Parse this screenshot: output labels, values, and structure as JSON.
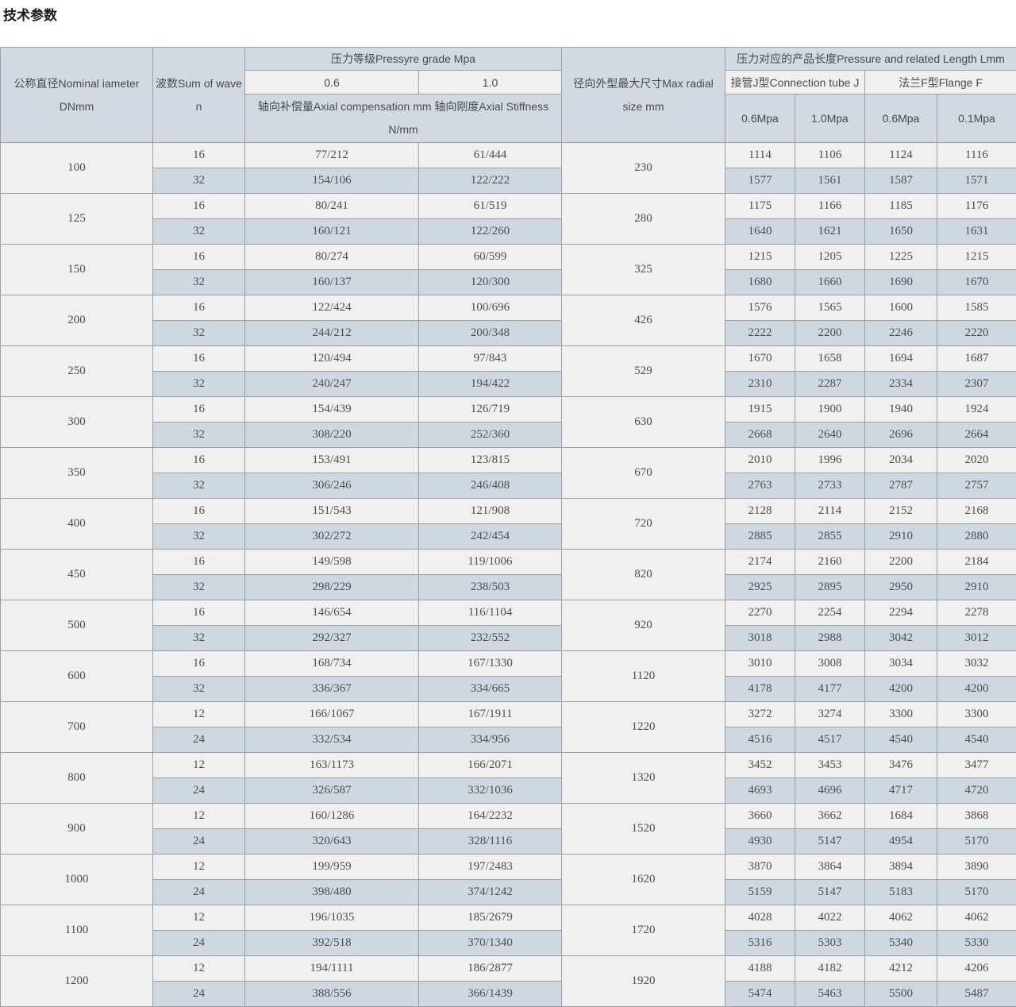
{
  "page_title": "技术参数",
  "colors": {
    "header_bg": "#d2d9e0",
    "row_light_bg": "#f0f0f0",
    "row_alt_bg": "#cfd8e1",
    "border": "#9b9fa3",
    "text": "#4a4a4a"
  },
  "table": {
    "headers": {
      "diameter_line1": "公称直径Nominal iameter",
      "diameter_line2": "DNmm",
      "wave_line1": "波数Sum of wave",
      "wave_line2": "n",
      "pressure_grade": "压力等级Pressyre grade Mpa",
      "grade_06": "0.6",
      "grade_10": "1.0",
      "axial_line1": "轴向补偿量Axial compensation mm 轴向刚度Axial Stiffness",
      "axial_line2": "N/mm",
      "radial_line1": "径向外型最大尺寸Max radial",
      "radial_line2": "size mm",
      "length_group": "压力对应的产品长度Pressure and related Length Lmm",
      "tube_j": "接管J型Connection tube J",
      "flange_f": "法兰F型Flange F",
      "tube_06": "0.6Mpa",
      "tube_10": "1.0Mpa",
      "flange_06": "0.6Mpa",
      "flange_01": "0.1Mpa"
    },
    "rows": [
      {
        "dn": "100",
        "radial": "230",
        "waves": [
          {
            "n": "16",
            "axial_06": "77/212",
            "axial_10": "61/444",
            "tube_06": "1114",
            "tube_10": "1106",
            "flange_06": "1124",
            "flange_01": "1116"
          },
          {
            "n": "32",
            "axial_06": "154/106",
            "axial_10": "122/222",
            "tube_06": "1577",
            "tube_10": "1561",
            "flange_06": "1587",
            "flange_01": "1571"
          }
        ]
      },
      {
        "dn": "125",
        "radial": "280",
        "waves": [
          {
            "n": "16",
            "axial_06": "80/241",
            "axial_10": "61/519",
            "tube_06": "1175",
            "tube_10": "1166",
            "flange_06": "1185",
            "flange_01": "1176"
          },
          {
            "n": "32",
            "axial_06": "160/121",
            "axial_10": "122/260",
            "tube_06": "1640",
            "tube_10": "1621",
            "flange_06": "1650",
            "flange_01": "1631"
          }
        ]
      },
      {
        "dn": "150",
        "radial": "325",
        "waves": [
          {
            "n": "16",
            "axial_06": "80/274",
            "axial_10": "60/599",
            "tube_06": "1215",
            "tube_10": "1205",
            "flange_06": "1225",
            "flange_01": "1215"
          },
          {
            "n": "32",
            "axial_06": "160/137",
            "axial_10": "120/300",
            "tube_06": "1680",
            "tube_10": "1660",
            "flange_06": "1690",
            "flange_01": "1670"
          }
        ]
      },
      {
        "dn": "200",
        "radial": "426",
        "waves": [
          {
            "n": "16",
            "axial_06": "122/424",
            "axial_10": "100/696",
            "tube_06": "1576",
            "tube_10": "1565",
            "flange_06": "1600",
            "flange_01": "1585"
          },
          {
            "n": "32",
            "axial_06": "244/212",
            "axial_10": "200/348",
            "tube_06": "2222",
            "tube_10": "2200",
            "flange_06": "2246",
            "flange_01": "2220"
          }
        ]
      },
      {
        "dn": "250",
        "radial": "529",
        "waves": [
          {
            "n": "16",
            "axial_06": "120/494",
            "axial_10": "97/843",
            "tube_06": "1670",
            "tube_10": "1658",
            "flange_06": "1694",
            "flange_01": "1687"
          },
          {
            "n": "32",
            "axial_06": "240/247",
            "axial_10": "194/422",
            "tube_06": "2310",
            "tube_10": "2287",
            "flange_06": "2334",
            "flange_01": "2307"
          }
        ]
      },
      {
        "dn": "300",
        "radial": "630",
        "waves": [
          {
            "n": "16",
            "axial_06": "154/439",
            "axial_10": "126/719",
            "tube_06": "1915",
            "tube_10": "1900",
            "flange_06": "1940",
            "flange_01": "1924"
          },
          {
            "n": "32",
            "axial_06": "308/220",
            "axial_10": "252/360",
            "tube_06": "2668",
            "tube_10": "2640",
            "flange_06": "2696",
            "flange_01": "2664"
          }
        ]
      },
      {
        "dn": "350",
        "radial": "670",
        "waves": [
          {
            "n": "16",
            "axial_06": "153/491",
            "axial_10": "123/815",
            "tube_06": "2010",
            "tube_10": "1996",
            "flange_06": "2034",
            "flange_01": "2020"
          },
          {
            "n": "32",
            "axial_06": "306/246",
            "axial_10": "246/408",
            "tube_06": "2763",
            "tube_10": "2733",
            "flange_06": "2787",
            "flange_01": "2757"
          }
        ]
      },
      {
        "dn": "400",
        "radial": "720",
        "waves": [
          {
            "n": "16",
            "axial_06": "151/543",
            "axial_10": "121/908",
            "tube_06": "2128",
            "tube_10": "2114",
            "flange_06": "2152",
            "flange_01": "2168"
          },
          {
            "n": "32",
            "axial_06": "302/272",
            "axial_10": "242/454",
            "tube_06": "2885",
            "tube_10": "2855",
            "flange_06": "2910",
            "flange_01": "2880"
          }
        ]
      },
      {
        "dn": "450",
        "radial": "820",
        "waves": [
          {
            "n": "16",
            "axial_06": "149/598",
            "axial_10": "119/1006",
            "tube_06": "2174",
            "tube_10": "2160",
            "flange_06": "2200",
            "flange_01": "2184"
          },
          {
            "n": "32",
            "axial_06": "298/229",
            "axial_10": "238/503",
            "tube_06": "2925",
            "tube_10": "2895",
            "flange_06": "2950",
            "flange_01": "2910"
          }
        ]
      },
      {
        "dn": "500",
        "radial": "920",
        "waves": [
          {
            "n": "16",
            "axial_06": "146/654",
            "axial_10": "116/1104",
            "tube_06": "2270",
            "tube_10": "2254",
            "flange_06": "2294",
            "flange_01": "2278"
          },
          {
            "n": "32",
            "axial_06": "292/327",
            "axial_10": "232/552",
            "tube_06": "3018",
            "tube_10": "2988",
            "flange_06": "3042",
            "flange_01": "3012"
          }
        ]
      },
      {
        "dn": "600",
        "radial": "1120",
        "waves": [
          {
            "n": "16",
            "axial_06": "168/734",
            "axial_10": "167/1330",
            "tube_06": "3010",
            "tube_10": "3008",
            "flange_06": "3034",
            "flange_01": "3032"
          },
          {
            "n": "32",
            "axial_06": "336/367",
            "axial_10": "334/665",
            "tube_06": "4178",
            "tube_10": "4177",
            "flange_06": "4200",
            "flange_01": "4200"
          }
        ]
      },
      {
        "dn": "700",
        "radial": "1220",
        "waves": [
          {
            "n": "12",
            "axial_06": "166/1067",
            "axial_10": "167/1911",
            "tube_06": "3272",
            "tube_10": "3274",
            "flange_06": "3300",
            "flange_01": "3300"
          },
          {
            "n": "24",
            "axial_06": "332/534",
            "axial_10": "334/956",
            "tube_06": "4516",
            "tube_10": "4517",
            "flange_06": "4540",
            "flange_01": "4540"
          }
        ]
      },
      {
        "dn": "800",
        "radial": "1320",
        "waves": [
          {
            "n": "12",
            "axial_06": "163/1173",
            "axial_10": "166/2071",
            "tube_06": "3452",
            "tube_10": "3453",
            "flange_06": "3476",
            "flange_01": "3477"
          },
          {
            "n": "24",
            "axial_06": "326/587",
            "axial_10": "332/1036",
            "tube_06": "4693",
            "tube_10": "4696",
            "flange_06": "4717",
            "flange_01": "4720"
          }
        ]
      },
      {
        "dn": "900",
        "radial": "1520",
        "waves": [
          {
            "n": "12",
            "axial_06": "160/1286",
            "axial_10": "164/2232",
            "tube_06": "3660",
            "tube_10": "3662",
            "flange_06": "1684",
            "flange_01": "3868"
          },
          {
            "n": "24",
            "axial_06": "320/643",
            "axial_10": "328/1116",
            "tube_06": "4930",
            "tube_10": "5147",
            "flange_06": "4954",
            "flange_01": "5170"
          }
        ]
      },
      {
        "dn": "1000",
        "radial": "1620",
        "waves": [
          {
            "n": "12",
            "axial_06": "199/959",
            "axial_10": "197/2483",
            "tube_06": "3870",
            "tube_10": "3864",
            "flange_06": "3894",
            "flange_01": "3890"
          },
          {
            "n": "24",
            "axial_06": "398/480",
            "axial_10": "374/1242",
            "tube_06": "5159",
            "tube_10": "5147",
            "flange_06": "5183",
            "flange_01": "5170"
          }
        ]
      },
      {
        "dn": "1100",
        "radial": "1720",
        "waves": [
          {
            "n": "12",
            "axial_06": "196/1035",
            "axial_10": "185/2679",
            "tube_06": "4028",
            "tube_10": "4022",
            "flange_06": "4062",
            "flange_01": "4062"
          },
          {
            "n": "24",
            "axial_06": "392/518",
            "axial_10": "370/1340",
            "tube_06": "5316",
            "tube_10": "5303",
            "flange_06": "5340",
            "flange_01": "5330"
          }
        ]
      },
      {
        "dn": "1200",
        "radial": "1920",
        "waves": [
          {
            "n": "12",
            "axial_06": "194/1111",
            "axial_10": "186/2877",
            "tube_06": "4188",
            "tube_10": "4182",
            "flange_06": "4212",
            "flange_01": "4206"
          },
          {
            "n": "24",
            "axial_06": "388/556",
            "axial_10": "366/1439",
            "tube_06": "5474",
            "tube_10": "5463",
            "flange_06": "5500",
            "flange_01": "5487"
          }
        ]
      }
    ]
  }
}
